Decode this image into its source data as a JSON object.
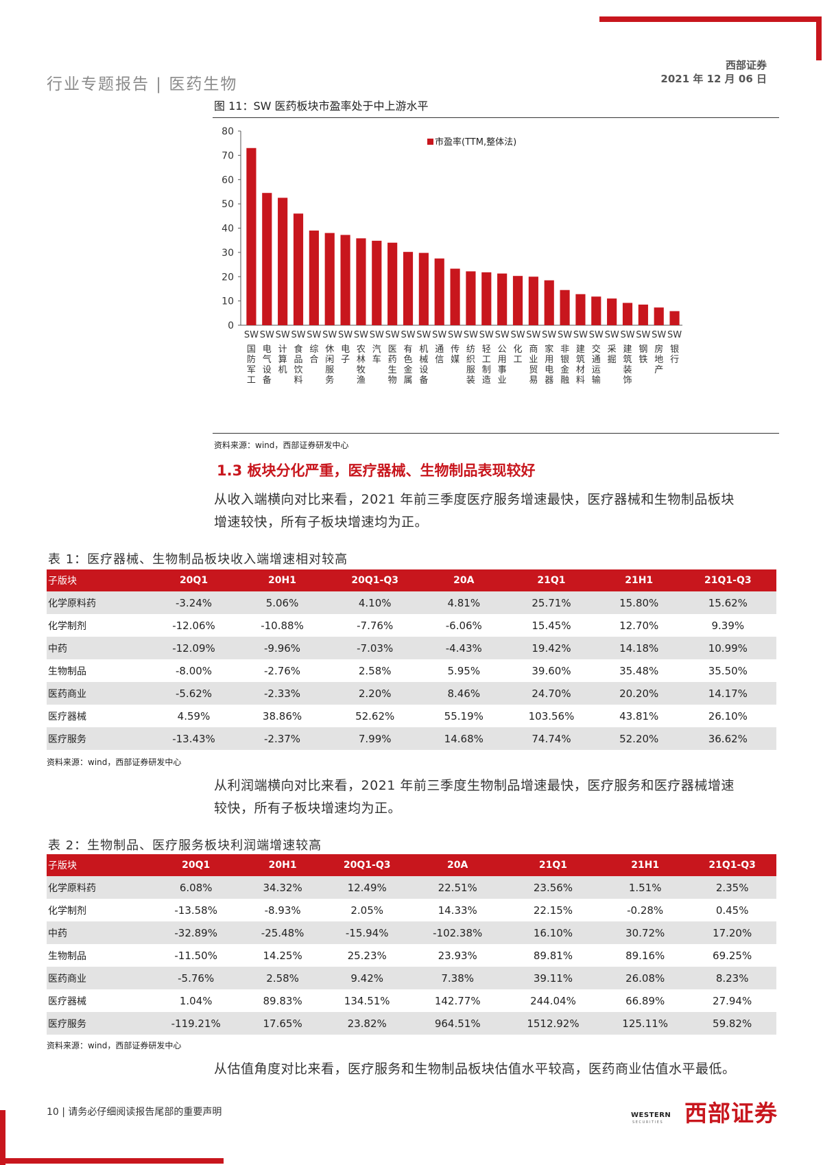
{
  "header": {
    "left": "行业专题报告 | 医药生物",
    "brand": "西部证券",
    "date": "2021 年 12 月 06 日"
  },
  "figure": {
    "title": "图 11：SW 医药板块市盈率处于中上游水平",
    "source": "资料来源：wind，西部证券研发中心"
  },
  "chart_data": {
    "type": "bar",
    "title": "",
    "legend": "市盈率(TTM,整体法)",
    "legend_position": "top-right",
    "ylim": [
      0,
      80
    ],
    "yticks": [
      0,
      10,
      20,
      30,
      40,
      50,
      60,
      70,
      80
    ],
    "color": "#c8161d",
    "categories": [
      "SW国防军工",
      "SW电气设备",
      "SW计算机",
      "SW食品饮料",
      "SW综合",
      "SW休闲服务",
      "SW电子",
      "SW农林牧渔",
      "SW汽车",
      "SW医药生物",
      "SW有色金属",
      "SW机械设备",
      "SW通信",
      "SW传媒",
      "SW纺织服装",
      "SW轻工制造",
      "SW公用事业",
      "SW化工",
      "SW商业贸易",
      "SW家用电器",
      "SW非银金融",
      "SW建筑材料",
      "SW交通运输",
      "SW采掘",
      "SW建筑装饰",
      "SW钢铁",
      "SW房地产",
      "SW银行"
    ],
    "values": [
      73,
      54.5,
      52.5,
      46,
      39,
      38,
      37.2,
      35.8,
      34.8,
      34,
      30.2,
      29.8,
      27.5,
      23.3,
      22.2,
      21.8,
      21.3,
      20.3,
      20,
      18.5,
      14.5,
      12.8,
      11.8,
      11,
      9.2,
      8.5,
      7.3,
      5.8
    ]
  },
  "section": {
    "heading": "1.3  板块分化严重，医疗器械、生物制品表现较好",
    "para1_line1": "从收入端横向对比来看，2021 年前三季度医疗服务增速最快，医疗器械和生物制品板块",
    "para1_line2": "增速较快，所有子板块增速均为正。"
  },
  "table1": {
    "title": "表 1：医疗器械、生物制品板块收入端增速相对较高",
    "headers": [
      "子版块",
      "20Q1",
      "20H1",
      "20Q1-Q3",
      "20A",
      "21Q1",
      "21H1",
      "21Q1-Q3"
    ],
    "rows": [
      [
        "化学原料药",
        "-3.24%",
        "5.06%",
        "4.10%",
        "4.81%",
        "25.71%",
        "15.80%",
        "15.62%"
      ],
      [
        "化学制剂",
        "-12.06%",
        "-10.88%",
        "-7.76%",
        "-6.06%",
        "15.45%",
        "12.70%",
        "9.39%"
      ],
      [
        "中药",
        "-12.09%",
        "-9.96%",
        "-7.03%",
        "-4.43%",
        "19.42%",
        "14.18%",
        "10.99%"
      ],
      [
        "生物制品",
        "-8.00%",
        "-2.76%",
        "2.58%",
        "5.95%",
        "39.60%",
        "35.48%",
        "35.50%"
      ],
      [
        "医药商业",
        "-5.62%",
        "-2.33%",
        "2.20%",
        "8.46%",
        "24.70%",
        "20.20%",
        "14.17%"
      ],
      [
        "医疗器械",
        "4.59%",
        "38.86%",
        "52.62%",
        "55.19%",
        "103.56%",
        "43.81%",
        "26.10%"
      ],
      [
        "医疗服务",
        "-13.43%",
        "-2.37%",
        "7.99%",
        "14.68%",
        "74.74%",
        "52.20%",
        "36.62%"
      ]
    ],
    "source": "资料来源：wind，西部证券研发中心"
  },
  "para2_line1": "从利润端横向对比来看，2021 年前三季度生物制品增速最快，医疗服务和医疗器械增速",
  "para2_line2": "较快，所有子板块增速均为正。",
  "table2": {
    "title": "表 2：生物制品、医疗服务板块利润端增速较高",
    "headers": [
      "子版块",
      "20Q1",
      "20H1",
      "20Q1-Q3",
      "20A",
      "21Q1",
      "21H1",
      "21Q1-Q3"
    ],
    "rows": [
      [
        "化学原料药",
        "6.08%",
        "34.32%",
        "12.49%",
        "22.51%",
        "23.56%",
        "1.51%",
        "2.35%"
      ],
      [
        "化学制剂",
        "-13.58%",
        "-8.93%",
        "2.05%",
        "14.33%",
        "22.15%",
        "-0.28%",
        "0.45%"
      ],
      [
        "中药",
        "-32.89%",
        "-25.48%",
        "-15.94%",
        "-102.38%",
        "16.10%",
        "30.72%",
        "17.20%"
      ],
      [
        "生物制品",
        "-11.50%",
        "14.25%",
        "25.23%",
        "23.93%",
        "89.81%",
        "89.16%",
        "69.25%"
      ],
      [
        "医药商业",
        "-5.76%",
        "2.58%",
        "9.42%",
        "7.38%",
        "39.11%",
        "26.08%",
        "8.23%"
      ],
      [
        "医疗器械",
        "1.04%",
        "89.83%",
        "134.51%",
        "142.77%",
        "244.04%",
        "66.89%",
        "27.94%"
      ],
      [
        "医疗服务",
        "-119.21%",
        "17.65%",
        "23.82%",
        "964.51%",
        "1512.92%",
        "125.11%",
        "59.82%"
      ]
    ],
    "source": "资料来源：wind，西部证券研发中心"
  },
  "para3": "从估值角度对比来看，医疗服务和生物制品板块估值水平较高，医药商业估值水平最低。",
  "footer": {
    "page": "10 | 请务必仔细阅读报告尾部的重要声明",
    "logo_en": "WESTERN",
    "logo_en_sub": "SECURITIES",
    "logo_cn": "西部证券"
  }
}
